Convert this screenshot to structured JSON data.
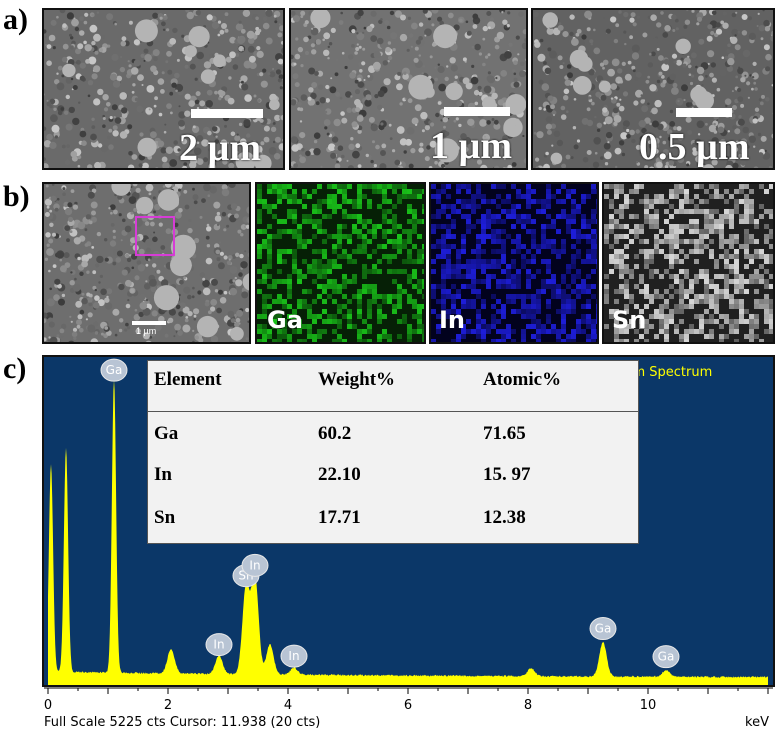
{
  "panel_a": {
    "label": "a)",
    "images": [
      {
        "scale": "2 µm"
      },
      {
        "scale": "1 µm"
      },
      {
        "scale": "0.5 µm"
      }
    ]
  },
  "panel_b": {
    "label": "b)",
    "sem_scale": "1 µm",
    "maps": [
      {
        "element": "Ga",
        "color": "#19c019"
      },
      {
        "element": "In",
        "color": "#1d1dd8"
      },
      {
        "element": "Sn",
        "color": "#d8d8d8"
      }
    ]
  },
  "panel_c": {
    "label": "c)",
    "spectrum_title": "Sum Spectrum",
    "footer": "Full Scale 5225 cts Cursor: 11.938  (20 cts)",
    "x_unit": "keV",
    "table": {
      "headers": [
        "Element",
        "Weight%",
        "Atomic%"
      ],
      "rows": [
        [
          "Ga",
          "60.2",
          "71.65"
        ],
        [
          "In",
          "22.10",
          "15. 97"
        ],
        [
          "Sn",
          "17.71",
          "12.38"
        ]
      ]
    }
  },
  "chart_data": {
    "type": "line",
    "title": "Sum Spectrum",
    "xlabel": "keV",
    "ylabel": "",
    "xlim": [
      0,
      12
    ],
    "x_ticks": [
      0,
      2,
      4,
      6,
      8,
      10
    ],
    "ylim": [
      0,
      5225
    ],
    "peaks": [
      {
        "x": 0.05,
        "y": 3600,
        "label": ""
      },
      {
        "x": 0.3,
        "y": 3900,
        "label": ""
      },
      {
        "x": 1.1,
        "y": 5100,
        "label": "Ga"
      },
      {
        "x": 2.05,
        "y": 420,
        "label": ""
      },
      {
        "x": 2.85,
        "y": 320,
        "label": "In"
      },
      {
        "x": 3.3,
        "y": 1520,
        "label": "Sn"
      },
      {
        "x": 3.45,
        "y": 1700,
        "label": "In"
      },
      {
        "x": 3.7,
        "y": 520,
        "label": ""
      },
      {
        "x": 4.1,
        "y": 120,
        "label": "In"
      },
      {
        "x": 8.05,
        "y": 140,
        "label": ""
      },
      {
        "x": 9.25,
        "y": 600,
        "label": "Ga"
      },
      {
        "x": 10.3,
        "y": 110,
        "label": "Ga"
      }
    ],
    "baseline": 110,
    "line_color": "#ffff00",
    "background_color": "#0b3768"
  }
}
